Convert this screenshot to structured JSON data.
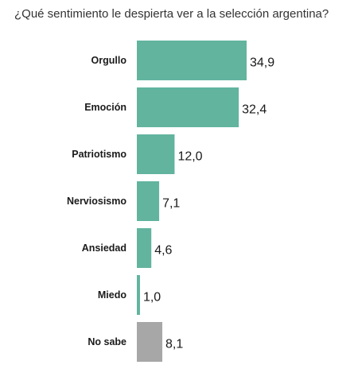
{
  "chart_data": {
    "type": "bar",
    "orientation": "horizontal",
    "title": "¿Qué sentimiento le despierta ver a la selección argentina?",
    "categories": [
      "Orgullo",
      "Emoción",
      "Patriotismo",
      "Nerviosismo",
      "Ansiedad",
      "Miedo",
      "No sabe"
    ],
    "values": [
      34.9,
      32.4,
      12.0,
      7.1,
      4.6,
      1.0,
      8.1
    ],
    "value_labels": [
      "34,9",
      "32,4",
      "12,0",
      "7,1",
      "4,6",
      "1,0",
      "8,1"
    ],
    "colors": [
      "#62b49f",
      "#62b49f",
      "#62b49f",
      "#62b49f",
      "#62b49f",
      "#62b49f",
      "#a7a7a7"
    ],
    "xlim": [
      0,
      34.9
    ],
    "grid": false,
    "legend": "none"
  }
}
